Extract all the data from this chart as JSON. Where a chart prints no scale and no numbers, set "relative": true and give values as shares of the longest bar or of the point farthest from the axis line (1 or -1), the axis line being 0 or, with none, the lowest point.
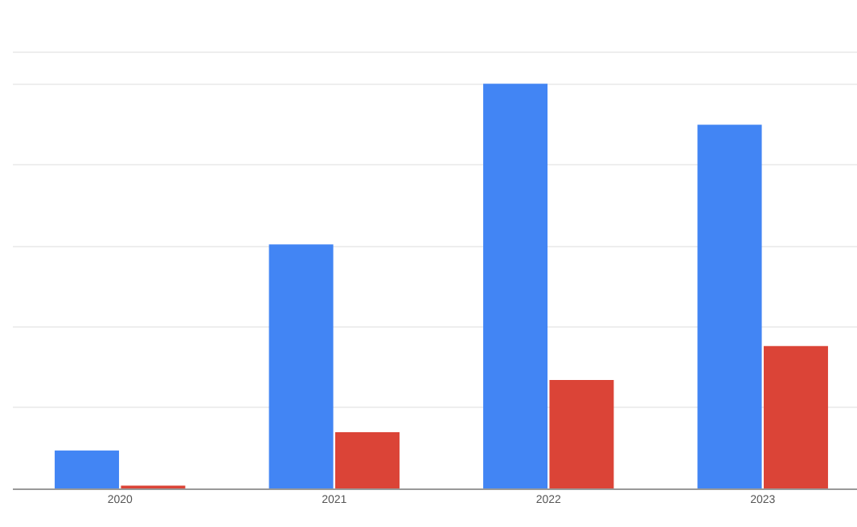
{
  "chart_data": {
    "type": "bar",
    "relative": true,
    "grid": true,
    "categories": [
      "2020",
      "2021",
      "2022",
      "2023"
    ],
    "series": [
      {
        "color": "#4285f4",
        "values": [
          0.094,
          0.603,
          1,
          0.899
        ]
      },
      {
        "color": "#db4437",
        "values": [
          0.007,
          0.139,
          0.268,
          0.352
        ]
      }
    ]
  }
}
